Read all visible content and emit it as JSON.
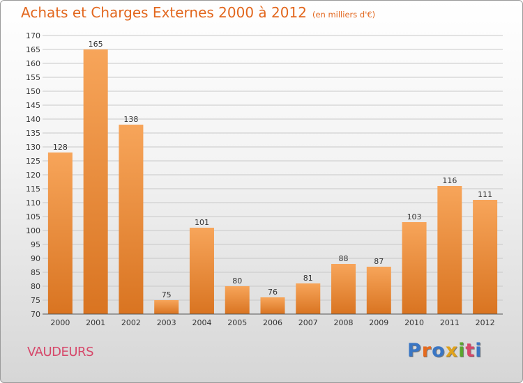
{
  "title": "Achats et Charges Externes 2000 à 2012",
  "subtitle": "(en milliers d'€)",
  "commune": "VAUDEURS",
  "logo": {
    "text": "Proxiti",
    "colors": [
      "#3a76c4",
      "#e56a1e",
      "#3a76c4",
      "#e0a21c",
      "#5aa52e",
      "#d6486a",
      "#3a76c4"
    ]
  },
  "colors": {
    "accent": "#e2671e",
    "bar_top": "#f7a55a",
    "bar_bottom": "#d97421",
    "commune": "#d6486a"
  },
  "chart_data": {
    "type": "bar",
    "categories": [
      "2000",
      "2001",
      "2002",
      "2003",
      "2004",
      "2005",
      "2006",
      "2007",
      "2008",
      "2009",
      "2010",
      "2011",
      "2012"
    ],
    "values": [
      128,
      165,
      138,
      75,
      101,
      80,
      76,
      81,
      88,
      87,
      103,
      116,
      111
    ],
    "ylim": [
      70,
      170
    ],
    "yticks": [
      70,
      75,
      80,
      85,
      90,
      95,
      100,
      105,
      110,
      115,
      120,
      125,
      130,
      135,
      140,
      145,
      150,
      155,
      160,
      165,
      170
    ],
    "grid": true,
    "data_labels": true
  }
}
